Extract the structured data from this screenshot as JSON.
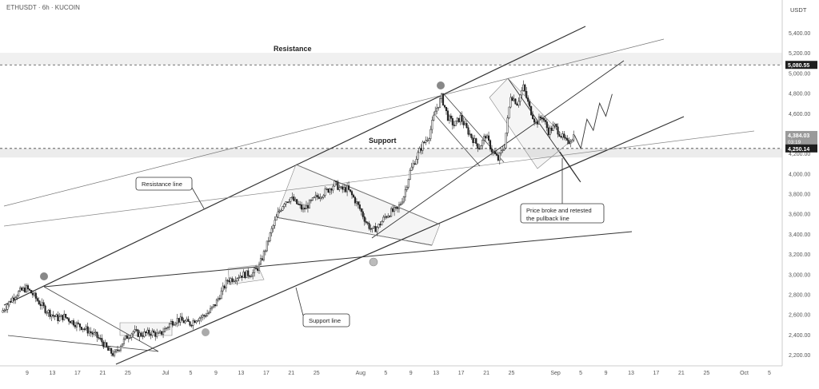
{
  "header": {
    "symbol": "ETHUSDT · 6h · KUCOIN",
    "currency": "USDT"
  },
  "chart_data": {
    "type": "line",
    "title": "",
    "ylabel": "USDT",
    "scale": "linear",
    "grid": false,
    "ylim": [
      2120,
      5520
    ],
    "y_ticks": [
      2200,
      2400,
      2600,
      2800,
      3000,
      3200,
      3400,
      3600,
      3800,
      4000,
      4200,
      4400,
      4600,
      4800,
      5000,
      5200,
      5400
    ],
    "y_tick_labels": [
      "2,200.00",
      "2,400.00",
      "2,600.00",
      "2,800.00",
      "3,000.00",
      "3,200.00",
      "3,400.00",
      "3,600.00",
      "3,800.00",
      "4,000.00",
      "4,200.00",
      "4,400.00",
      "4,600.00",
      "4,800.00",
      "5,000.00",
      "5,200.00",
      "5,400.00"
    ],
    "x_ticks": [
      {
        "day": 9,
        "label": "9"
      },
      {
        "day": 13,
        "label": "13"
      },
      {
        "day": 17,
        "label": "17"
      },
      {
        "day": 21,
        "label": "21"
      },
      {
        "day": 25,
        "label": "25"
      },
      {
        "day": 31,
        "label": "Jul"
      },
      {
        "day": 35,
        "label": "5"
      },
      {
        "day": 39,
        "label": "9"
      },
      {
        "day": 43,
        "label": "13"
      },
      {
        "day": 47,
        "label": "17"
      },
      {
        "day": 51,
        "label": "21"
      },
      {
        "day": 55,
        "label": "25"
      },
      {
        "day": 62,
        "label": "Aug"
      },
      {
        "day": 66,
        "label": "5"
      },
      {
        "day": 70,
        "label": "9"
      },
      {
        "day": 74,
        "label": "13"
      },
      {
        "day": 78,
        "label": "17"
      },
      {
        "day": 82,
        "label": "21"
      },
      {
        "day": 86,
        "label": "25"
      },
      {
        "day": 93,
        "label": "Sep"
      },
      {
        "day": 97,
        "label": "5"
      },
      {
        "day": 101,
        "label": "9"
      },
      {
        "day": 105,
        "label": "13"
      },
      {
        "day": 109,
        "label": "17"
      },
      {
        "day": 113,
        "label": "21"
      },
      {
        "day": 117,
        "label": "25"
      },
      {
        "day": 123,
        "label": "Oct"
      },
      {
        "day": 127,
        "label": "5"
      }
    ],
    "series": [
      {
        "values": [
          [
            5,
            2620
          ],
          [
            6,
            2700
          ],
          [
            7,
            2780
          ],
          [
            8,
            2830
          ],
          [
            9,
            2860
          ],
          [
            10,
            2800
          ],
          [
            11,
            2720
          ],
          [
            12,
            2650
          ],
          [
            13,
            2600
          ],
          [
            14,
            2560
          ],
          [
            15,
            2580
          ],
          [
            16,
            2540
          ],
          [
            17,
            2500
          ],
          [
            18,
            2470
          ],
          [
            19,
            2430
          ],
          [
            20,
            2390
          ],
          [
            21,
            2330
          ],
          [
            22,
            2240
          ],
          [
            23,
            2200
          ],
          [
            24,
            2300
          ],
          [
            25,
            2380
          ],
          [
            26,
            2430
          ],
          [
            27,
            2400
          ],
          [
            28,
            2410
          ],
          [
            29,
            2420
          ],
          [
            30,
            2390
          ],
          [
            31,
            2450
          ],
          [
            32,
            2520
          ],
          [
            33,
            2550
          ],
          [
            34,
            2530
          ],
          [
            35,
            2510
          ],
          [
            36,
            2560
          ],
          [
            37,
            2580
          ],
          [
            38,
            2620
          ],
          [
            39,
            2700
          ],
          [
            40,
            2820
          ],
          [
            41,
            2940
          ],
          [
            42,
            2960
          ],
          [
            43,
            2990
          ],
          [
            44,
            3000
          ],
          [
            45,
            3010
          ],
          [
            46,
            3080
          ],
          [
            47,
            3250
          ],
          [
            48,
            3440
          ],
          [
            49,
            3600
          ],
          [
            50,
            3720
          ],
          [
            51,
            3760
          ],
          [
            52,
            3700
          ],
          [
            53,
            3640
          ],
          [
            54,
            3700
          ],
          [
            55,
            3760
          ],
          [
            56,
            3800
          ],
          [
            57,
            3840
          ],
          [
            58,
            3900
          ],
          [
            59,
            3840
          ],
          [
            60,
            3850
          ],
          [
            61,
            3760
          ],
          [
            62,
            3650
          ],
          [
            63,
            3520
          ],
          [
            64,
            3430
          ],
          [
            65,
            3480
          ],
          [
            66,
            3570
          ],
          [
            67,
            3620
          ],
          [
            68,
            3640
          ],
          [
            69,
            3780
          ],
          [
            70,
            4020
          ],
          [
            71,
            4160
          ],
          [
            72,
            4290
          ],
          [
            73,
            4380
          ],
          [
            74,
            4620
          ],
          [
            75,
            4760
          ],
          [
            76,
            4560
          ],
          [
            77,
            4480
          ],
          [
            78,
            4560
          ],
          [
            79,
            4440
          ],
          [
            80,
            4340
          ],
          [
            81,
            4260
          ],
          [
            82,
            4380
          ],
          [
            83,
            4230
          ],
          [
            84,
            4140
          ],
          [
            85,
            4280
          ],
          [
            86,
            4780
          ],
          [
            87,
            4700
          ],
          [
            88,
            4860
          ],
          [
            89,
            4650
          ],
          [
            90,
            4500
          ],
          [
            91,
            4570
          ],
          [
            92,
            4420
          ],
          [
            93,
            4470
          ],
          [
            94,
            4380
          ],
          [
            95,
            4300
          ],
          [
            96,
            4380
          ]
        ]
      }
    ],
    "projection": [
      [
        96,
        4384
      ],
      [
        97,
        4250
      ],
      [
        98,
        4540
      ],
      [
        99,
        4430
      ],
      [
        100,
        4700
      ],
      [
        101,
        4570
      ],
      [
        102,
        4790
      ]
    ],
    "price_labels": [
      {
        "value": 5080.55,
        "text": "5,080.55",
        "dark": true
      },
      {
        "value": 4384.03,
        "text": "4,384.03",
        "sub": "03:19",
        "dark": false
      },
      {
        "value": 4250.14,
        "text": "4,250.14",
        "dark": true
      }
    ],
    "annotations": {
      "resistance": "Resistance",
      "support": "Support",
      "resistance_line": "Resistance line",
      "support_line": "Support line",
      "callout_line1": "Price broke and retested",
      "callout_line2": "the pullback line"
    }
  }
}
